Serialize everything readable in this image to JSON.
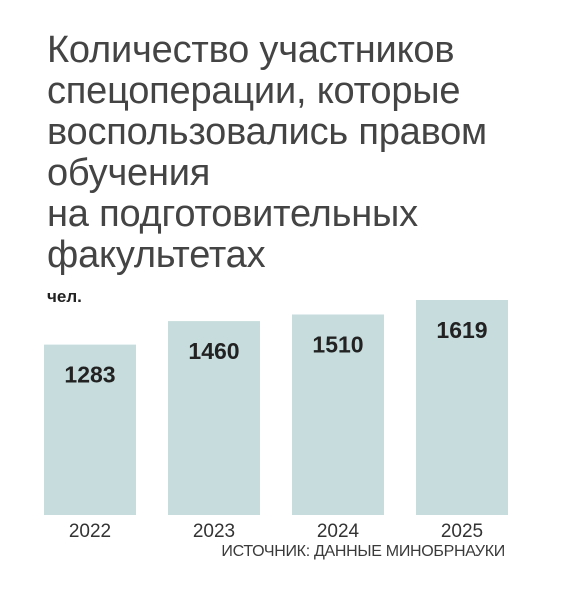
{
  "chart_data": {
    "type": "bar",
    "title": "Количество участников\nспецоперации, которые\nвоспользовались правом\nобучения\nна подготовительных\nфакультетах",
    "ylabel": "чел.",
    "categories": [
      "2022",
      "2023",
      "2024",
      "2025"
    ],
    "values": [
      1283,
      1460,
      1510,
      1619
    ],
    "grid": false,
    "bar_color": "#c6dcdd",
    "source": "ИСТОЧНИК: ДАННЫЕ МИНОБРНАУКИ"
  }
}
